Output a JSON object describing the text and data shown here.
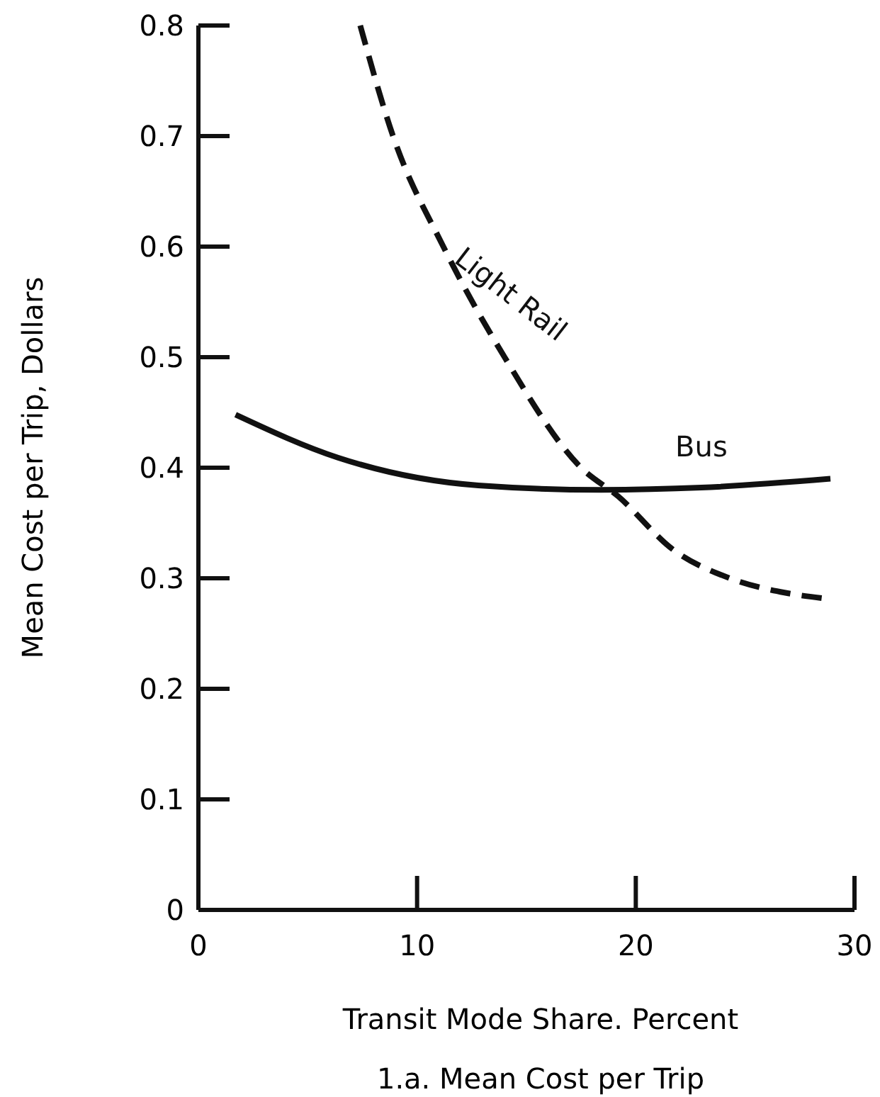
{
  "chart_data": {
    "type": "line",
    "title": "1.a. Mean Cost per Trip",
    "xlabel": "Transit Mode Share. Percent",
    "ylabel": "Mean Cost per Trip, Dollars",
    "xlim": [
      0,
      30
    ],
    "ylim": [
      0,
      0.8
    ],
    "xticks": [
      0,
      10,
      20,
      30
    ],
    "yticks": [
      0,
      0.1,
      0.2,
      0.3,
      0.4,
      0.5,
      0.6,
      0.7,
      0.8
    ],
    "grid": false,
    "marker": "none",
    "series": [
      {
        "name": "Bus",
        "color": "#111111",
        "line_style": "solid",
        "x": [
          1.7,
          6.4,
          12.8,
          18.4,
          23,
          28.9
        ],
        "values": [
          0.448,
          0.409,
          0.384,
          0.38,
          0.382,
          0.39
        ]
      },
      {
        "name": "Light Rail",
        "color": "#111111",
        "line_style": "dashed",
        "x": [
          7.4,
          8.9,
          11.2,
          14,
          17.5,
          19.2,
          21.7,
          24.3,
          26.8,
          28.5
        ],
        "values": [
          0.8,
          0.7,
          0.6,
          0.5,
          0.4,
          0.374,
          0.326,
          0.3,
          0.287,
          0.282
        ]
      }
    ]
  }
}
